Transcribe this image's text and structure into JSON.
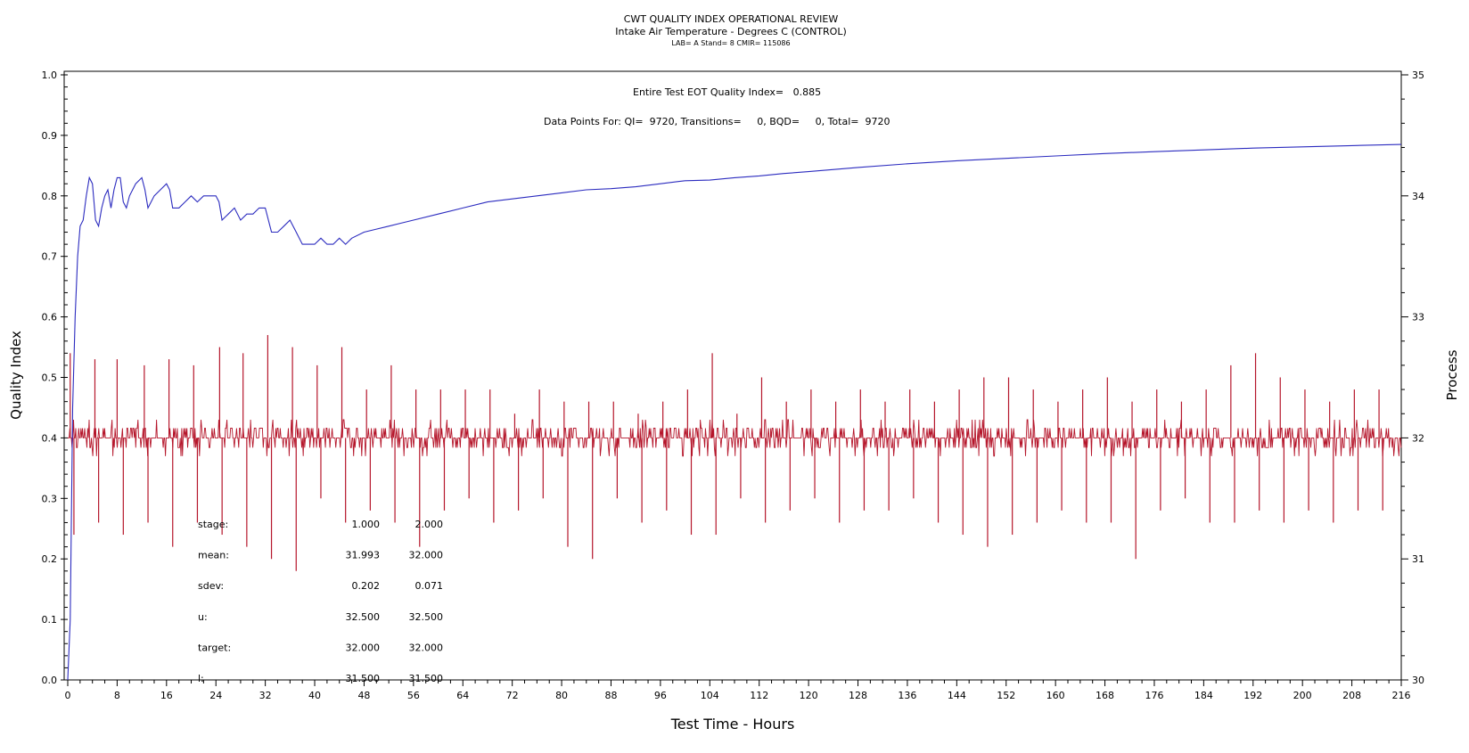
{
  "chart_data": {
    "type": "line",
    "title": "CWT QUALITY INDEX OPERATIONAL REVIEW",
    "subtitle": "Intake Air Temperature - Degrees C (CONTROL)",
    "subtitle2": "LAB= A Stand= 8 CMIR= 115086",
    "annotations": {
      "quality_index": "Entire Test EOT Quality Index=   0.885",
      "data_points": "Data Points For: QI=  9720, Transitions=     0, BQD=     0, Total=  9720"
    },
    "xlabel": "Test Time - Hours",
    "ylabel": "Quality Index",
    "y2label": "Process",
    "xlim": [
      0,
      216
    ],
    "ylim": [
      0,
      1.0
    ],
    "y2lim": [
      30,
      35
    ],
    "x_ticks": [
      "0",
      "8",
      "16",
      "24",
      "32",
      "40",
      "48",
      "56",
      "64",
      "72",
      "80",
      "88",
      "96",
      "104",
      "112",
      "120",
      "128",
      "136",
      "144",
      "152",
      "160",
      "168",
      "176",
      "184",
      "192",
      "200",
      "208",
      "216"
    ],
    "y_ticks": [
      "0.0",
      "0.1",
      "0.2",
      "0.3",
      "0.4",
      "0.5",
      "0.6",
      "0.7",
      "0.8",
      "0.9",
      "1.0"
    ],
    "y2_ticks": [
      "30",
      "31",
      "32",
      "33",
      "34",
      "35"
    ],
    "grid": false,
    "colors": {
      "quality_index": "#2b2bbf",
      "process": "#b5162b"
    },
    "quality_index_series": {
      "x": [
        0,
        0.4,
        0.8,
        1.2,
        1.6,
        2.0,
        2.5,
        3.0,
        3.5,
        4.0,
        4.5,
        5.0,
        5.5,
        6.0,
        6.5,
        7.0,
        7.5,
        8.0,
        8.5,
        9.0,
        9.5,
        10.0,
        11.0,
        12.0,
        12.5,
        13.0,
        14.0,
        15.0,
        16.0,
        16.5,
        17.0,
        18.0,
        19.0,
        20.0,
        21.0,
        22.0,
        23.0,
        24.0,
        24.5,
        25.0,
        26.0,
        27.0,
        28.0,
        29.0,
        30.0,
        31.0,
        32.0,
        33.0,
        34.0,
        35.0,
        36.0,
        37.0,
        38.0,
        39.0,
        40.0,
        41.0,
        42.0,
        43.0,
        44.0,
        45.0,
        46.0,
        48.0,
        50.0,
        52.0,
        54.0,
        56.0,
        60.0,
        64.0,
        68.0,
        72.0,
        76.0,
        80.0,
        84.0,
        88.0,
        92.0,
        96.0,
        100.0,
        104.0,
        108.0,
        112.0,
        116.0,
        120.0,
        128.0,
        136.0,
        144.0,
        152.0,
        160.0,
        168.0,
        176.0,
        184.0,
        192.0,
        200.0,
        208.0,
        216.0
      ],
      "y": [
        0.0,
        0.1,
        0.45,
        0.6,
        0.7,
        0.75,
        0.76,
        0.8,
        0.83,
        0.82,
        0.76,
        0.75,
        0.78,
        0.8,
        0.81,
        0.78,
        0.81,
        0.83,
        0.83,
        0.79,
        0.78,
        0.8,
        0.82,
        0.83,
        0.81,
        0.78,
        0.8,
        0.81,
        0.82,
        0.81,
        0.78,
        0.78,
        0.79,
        0.8,
        0.79,
        0.8,
        0.8,
        0.8,
        0.79,
        0.76,
        0.77,
        0.78,
        0.76,
        0.77,
        0.77,
        0.78,
        0.78,
        0.74,
        0.74,
        0.75,
        0.76,
        0.74,
        0.72,
        0.72,
        0.72,
        0.73,
        0.72,
        0.72,
        0.73,
        0.72,
        0.73,
        0.74,
        0.745,
        0.75,
        0.755,
        0.76,
        0.77,
        0.78,
        0.79,
        0.795,
        0.8,
        0.805,
        0.81,
        0.812,
        0.815,
        0.82,
        0.825,
        0.826,
        0.83,
        0.833,
        0.837,
        0.84,
        0.847,
        0.853,
        0.858,
        0.862,
        0.866,
        0.87,
        0.873,
        0.876,
        0.879,
        0.881,
        0.883,
        0.885
      ]
    },
    "process_series": {
      "name": "Process",
      "target": 32.0,
      "x": [
        0.4,
        1.0,
        4.4,
        5.0,
        8.0,
        9.0,
        12.4,
        13.0,
        16.4,
        17.0,
        20.4,
        21.0,
        24.6,
        25.0,
        28.4,
        29.0,
        32.4,
        33.0,
        36.4,
        37.0,
        40.4,
        41.0,
        44.4,
        45.0,
        48.4,
        49.0,
        52.4,
        53.0,
        56.4,
        57.0,
        60.4,
        61.0,
        64.4,
        65.0,
        68.4,
        69.0,
        72.4,
        73.0,
        76.4,
        77.0,
        80.4,
        81.0,
        84.4,
        85.0,
        88.4,
        89.0,
        92.4,
        93.0,
        96.4,
        97.0,
        100.4,
        101.0,
        104.4,
        105.0,
        108.4,
        109.0,
        112.4,
        113.0,
        116.4,
        117.0,
        120.4,
        121.0,
        124.4,
        125.0,
        128.4,
        129.0,
        132.4,
        133.0,
        136.4,
        137.0,
        140.4,
        141.0,
        144.4,
        145.0,
        148.4,
        149.0,
        152.4,
        153.0,
        156.4,
        157.0,
        160.4,
        161.0,
        164.4,
        165.0,
        168.4,
        169.0,
        172.4,
        173.0,
        176.4,
        177.0,
        180.4,
        181.0,
        184.4,
        185.0,
        188.4,
        189.0,
        192.4,
        193.0,
        196.4,
        197.0,
        200.4,
        201.0,
        204.4,
        205.0,
        208.4,
        209.0,
        212.4,
        213.0
      ],
      "y": [
        32.7,
        31.2,
        32.65,
        31.3,
        32.65,
        31.2,
        32.6,
        31.3,
        32.65,
        31.1,
        32.6,
        31.3,
        32.75,
        31.2,
        32.7,
        31.1,
        32.85,
        31.0,
        32.75,
        30.9,
        32.6,
        31.5,
        32.75,
        31.3,
        32.4,
        31.4,
        32.6,
        31.3,
        32.4,
        31.1,
        32.4,
        31.4,
        32.4,
        31.5,
        32.4,
        31.3,
        32.2,
        31.4,
        32.4,
        31.5,
        32.3,
        31.1,
        32.3,
        31.0,
        32.3,
        31.5,
        32.2,
        31.3,
        32.3,
        31.4,
        32.4,
        31.2,
        32.7,
        31.2,
        32.2,
        31.5,
        32.5,
        31.3,
        32.3,
        31.4,
        32.4,
        31.5,
        32.3,
        31.3,
        32.4,
        31.4,
        32.3,
        31.4,
        32.4,
        31.5,
        32.3,
        31.3,
        32.4,
        31.2,
        32.5,
        31.1,
        32.5,
        31.2,
        32.4,
        31.3,
        32.3,
        31.4,
        32.4,
        31.3,
        32.5,
        31.3,
        32.3,
        31.0,
        32.4,
        31.4,
        32.3,
        31.5,
        32.4,
        31.3,
        32.6,
        31.3,
        32.7,
        31.4,
        32.5,
        31.3,
        32.4,
        31.4,
        32.3,
        31.3,
        32.4,
        31.4,
        32.4,
        31.4
      ]
    },
    "stats_table": {
      "rows": [
        {
          "label": "stage:",
          "v1": "1.000",
          "v2": "2.000"
        },
        {
          "label": "mean:",
          "v1": "31.993",
          "v2": "32.000"
        },
        {
          "label": "sdev:",
          "v1": "0.202",
          "v2": "0.071"
        },
        {
          "label": "u:",
          "v1": "32.500",
          "v2": "32.500"
        },
        {
          "label": "target:",
          "v1": "32.000",
          "v2": "32.000"
        },
        {
          "label": "l:",
          "v1": "31.500",
          "v2": "31.500"
        }
      ]
    }
  }
}
